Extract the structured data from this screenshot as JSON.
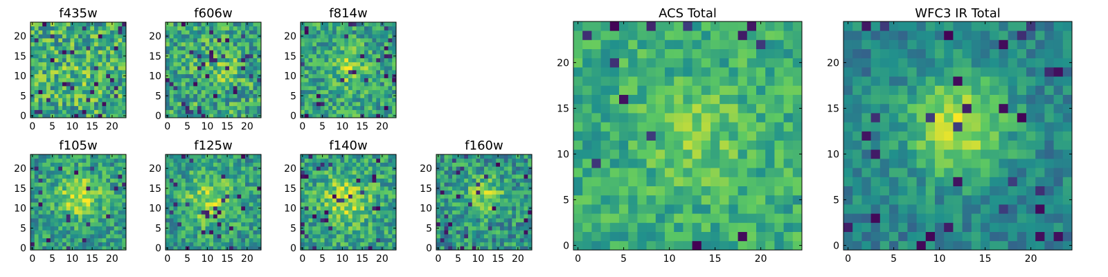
{
  "figure": {
    "description_colormap": "viridis"
  },
  "colormap": {
    "stops": [
      "#440154",
      "#3b528b",
      "#21918c",
      "#5ec962",
      "#fde725"
    ]
  },
  "chart_data": [
    {
      "type": "heatmap",
      "title": "f435w",
      "grid_size": 24,
      "xlim": [
        -0.5,
        23.5
      ],
      "ylim": [
        -0.5,
        23.5
      ],
      "x_ticks": [
        0,
        5,
        10,
        15,
        20
      ],
      "y_ticks": [
        0,
        5,
        10,
        15,
        20
      ],
      "x_tick_labels": [
        "0",
        "5",
        "10",
        "15",
        "20"
      ],
      "y_tick_labels": [
        "0",
        "5",
        "10",
        "15",
        "20"
      ],
      "pattern": {
        "seed": 11,
        "noise": 0.55,
        "peak": 0.05,
        "cx": 12,
        "cy": 11,
        "sigma": 4.0,
        "base": 0.62,
        "dark_rate": 0.05
      }
    },
    {
      "type": "heatmap",
      "title": "f606w",
      "grid_size": 24,
      "xlim": [
        -0.5,
        23.5
      ],
      "ylim": [
        -0.5,
        23.5
      ],
      "x_ticks": [
        0,
        5,
        10,
        15,
        20
      ],
      "y_ticks": [
        0,
        5,
        10,
        15,
        20
      ],
      "x_tick_labels": [
        "0",
        "5",
        "10",
        "15",
        "20"
      ],
      "y_tick_labels": [
        "0",
        "5",
        "10",
        "15",
        "20"
      ],
      "pattern": {
        "seed": 23,
        "noise": 0.5,
        "peak": 0.15,
        "cx": 14,
        "cy": 12,
        "sigma": 3.0,
        "base": 0.6,
        "dark_rate": 0.05
      }
    },
    {
      "type": "heatmap",
      "title": "f814w",
      "grid_size": 24,
      "xlim": [
        -0.5,
        23.5
      ],
      "ylim": [
        -0.5,
        23.5
      ],
      "x_ticks": [
        0,
        5,
        10,
        15,
        20
      ],
      "y_ticks": [
        0,
        5,
        10,
        15,
        20
      ],
      "x_tick_labels": [
        "0",
        "5",
        "10",
        "15",
        "20"
      ],
      "y_tick_labels": [
        "0",
        "5",
        "10",
        "15",
        "20"
      ],
      "pattern": {
        "seed": 37,
        "noise": 0.45,
        "peak": 0.3,
        "cx": 12,
        "cy": 12,
        "sigma": 2.8,
        "base": 0.58,
        "dark_rate": 0.05
      }
    },
    {
      "type": "heatmap",
      "title": "f105w",
      "grid_size": 24,
      "xlim": [
        -0.5,
        23.5
      ],
      "ylim": [
        -0.5,
        23.5
      ],
      "x_ticks": [
        0,
        5,
        10,
        15,
        20
      ],
      "y_ticks": [
        0,
        5,
        10,
        15,
        20
      ],
      "x_tick_labels": [
        "0",
        "5",
        "10",
        "15",
        "20"
      ],
      "y_tick_labels": [
        "0",
        "5",
        "10",
        "15",
        "20"
      ],
      "pattern": {
        "seed": 41,
        "noise": 0.4,
        "peak": 0.35,
        "cx": 12,
        "cy": 13,
        "sigma": 4.0,
        "base": 0.55,
        "dark_rate": 0.06
      }
    },
    {
      "type": "heatmap",
      "title": "f125w",
      "grid_size": 24,
      "xlim": [
        -0.5,
        23.5
      ],
      "ylim": [
        -0.5,
        23.5
      ],
      "x_ticks": [
        0,
        5,
        10,
        15,
        20
      ],
      "y_ticks": [
        0,
        5,
        10,
        15,
        20
      ],
      "x_tick_labels": [
        "0",
        "5",
        "10",
        "15",
        "20"
      ],
      "y_tick_labels": [
        "0",
        "5",
        "10",
        "15",
        "20"
      ],
      "pattern": {
        "seed": 53,
        "noise": 0.42,
        "peak": 0.3,
        "cx": 11,
        "cy": 12,
        "sigma": 4.5,
        "base": 0.55,
        "dark_rate": 0.07
      }
    },
    {
      "type": "heatmap",
      "title": "f140w",
      "grid_size": 24,
      "xlim": [
        -0.5,
        23.5
      ],
      "ylim": [
        -0.5,
        23.5
      ],
      "x_ticks": [
        0,
        5,
        10,
        15,
        20
      ],
      "y_ticks": [
        0,
        5,
        10,
        15,
        20
      ],
      "x_tick_labels": [
        "0",
        "5",
        "10",
        "15",
        "20"
      ],
      "y_tick_labels": [
        "0",
        "5",
        "10",
        "15",
        "20"
      ],
      "pattern": {
        "seed": 67,
        "noise": 0.42,
        "peak": 0.3,
        "cx": 11,
        "cy": 12,
        "sigma": 4.5,
        "base": 0.57,
        "dark_rate": 0.05
      }
    },
    {
      "type": "heatmap",
      "title": "f160w",
      "grid_size": 24,
      "xlim": [
        -0.5,
        23.5
      ],
      "ylim": [
        -0.5,
        23.5
      ],
      "x_ticks": [
        0,
        5,
        10,
        15,
        20
      ],
      "y_ticks": [
        0,
        5,
        10,
        15,
        20
      ],
      "x_tick_labels": [
        "0",
        "5",
        "10",
        "15",
        "20"
      ],
      "y_tick_labels": [
        "0",
        "5",
        "10",
        "15",
        "20"
      ],
      "pattern": {
        "seed": 79,
        "noise": 0.45,
        "peak": 0.3,
        "cx": 12,
        "cy": 13,
        "sigma": 3.5,
        "base": 0.52,
        "dark_rate": 0.05
      }
    },
    {
      "type": "heatmap",
      "title": "ACS Total",
      "grid_size": 25,
      "xlim": [
        -0.5,
        24.5
      ],
      "ylim": [
        -0.5,
        24.5
      ],
      "x_ticks": [
        0,
        5,
        10,
        15,
        20
      ],
      "y_ticks": [
        0,
        5,
        10,
        15,
        20
      ],
      "x_tick_labels": [
        "0",
        "5",
        "10",
        "15",
        "20"
      ],
      "y_tick_labels": [
        "0",
        "5",
        "10",
        "15",
        "20"
      ],
      "pattern": {
        "seed": 97,
        "noise": 0.32,
        "peak": 0.15,
        "cx": 13,
        "cy": 12,
        "sigma": 4.0,
        "base": 0.62,
        "dark_rate": 0.025
      }
    },
    {
      "type": "heatmap",
      "title": "WFC3 IR Total",
      "grid_size": 25,
      "xlim": [
        -0.5,
        24.5
      ],
      "ylim": [
        -0.5,
        24.5
      ],
      "x_ticks": [
        0,
        5,
        10,
        15,
        20
      ],
      "y_ticks": [
        0,
        5,
        10,
        15,
        20
      ],
      "x_tick_labels": [
        "0",
        "5",
        "10",
        "15",
        "20"
      ],
      "y_tick_labels": [
        "0",
        "5",
        "10",
        "15",
        "20"
      ],
      "pattern": {
        "seed": 113,
        "noise": 0.28,
        "peak": 0.45,
        "cx": 12,
        "cy": 13,
        "sigma": 4.0,
        "base": 0.45,
        "dark_rate": 0.05
      }
    }
  ]
}
